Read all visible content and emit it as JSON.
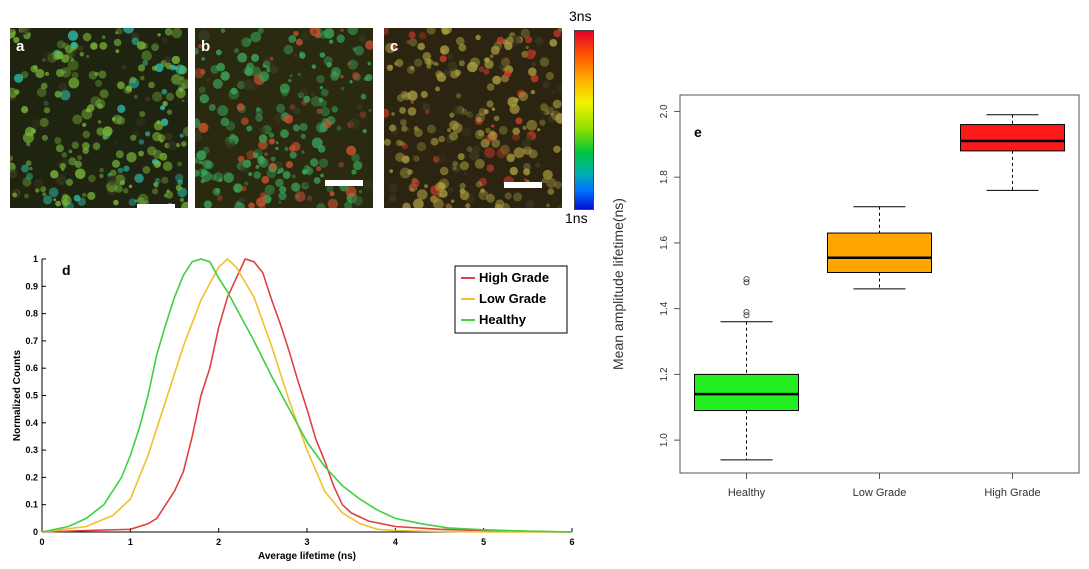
{
  "panels": {
    "a": {
      "letter": "a",
      "palette": {
        "base": "#1f2410",
        "fg": "#78b53a",
        "accent": "#2dc3b0"
      }
    },
    "b": {
      "letter": "b",
      "palette": {
        "base": "#2a2a10",
        "fg": "#3aa85a",
        "accent": "#c85030"
      }
    },
    "c": {
      "letter": "c",
      "palette": {
        "base": "#2a2410",
        "fg": "#a89a40",
        "accent": "#d03a2a"
      }
    }
  },
  "colorbar": {
    "top_label": "3ns",
    "bottom_label": "1ns"
  },
  "chart_data": [
    {
      "panel": "d",
      "type": "line",
      "xlabel": "Average lifetime (ns)",
      "ylabel": "Normalized Counts",
      "xlim": [
        0,
        6
      ],
      "ylim": [
        0,
        1
      ],
      "xticks": [
        "0",
        "1",
        "2",
        "3",
        "4",
        "5",
        "6"
      ],
      "yticks": [
        "0",
        "0.1",
        "0.2",
        "0.3",
        "0.4",
        "0.5",
        "0.6",
        "0.7",
        "0.8",
        "0.9",
        "1"
      ],
      "legend_position": "top-right",
      "grid": false,
      "series": [
        {
          "name": "High Grade",
          "color": "#e04040",
          "x": [
            0,
            0.5,
            1.0,
            1.2,
            1.3,
            1.4,
            1.5,
            1.6,
            1.7,
            1.8,
            1.9,
            2.0,
            2.1,
            2.2,
            2.3,
            2.4,
            2.5,
            2.6,
            2.7,
            2.8,
            2.9,
            3.0,
            3.1,
            3.2,
            3.3,
            3.4,
            3.5,
            3.7,
            4.0,
            4.5,
            5.0,
            6.0
          ],
          "y": [
            0,
            0.005,
            0.01,
            0.03,
            0.05,
            0.1,
            0.15,
            0.22,
            0.35,
            0.5,
            0.6,
            0.75,
            0.86,
            0.93,
            1.0,
            0.99,
            0.95,
            0.85,
            0.76,
            0.66,
            0.55,
            0.45,
            0.34,
            0.26,
            0.17,
            0.1,
            0.07,
            0.04,
            0.02,
            0.01,
            0.005,
            0
          ]
        },
        {
          "name": "Low Grade",
          "color": "#f0c030",
          "x": [
            0,
            0.5,
            0.8,
            1.0,
            1.2,
            1.4,
            1.6,
            1.8,
            2.0,
            2.1,
            2.2,
            2.4,
            2.6,
            2.8,
            3.0,
            3.2,
            3.4,
            3.6,
            3.8,
            4.0,
            4.5,
            5.0,
            6.0
          ],
          "y": [
            0,
            0.02,
            0.06,
            0.12,
            0.28,
            0.48,
            0.68,
            0.85,
            0.97,
            1.0,
            0.97,
            0.86,
            0.68,
            0.48,
            0.3,
            0.15,
            0.07,
            0.03,
            0.01,
            0.005,
            0.002,
            0,
            0
          ]
        },
        {
          "name": "Healthy",
          "color": "#40d040",
          "x": [
            0,
            0.3,
            0.5,
            0.7,
            0.9,
            1.0,
            1.1,
            1.2,
            1.3,
            1.4,
            1.5,
            1.6,
            1.7,
            1.8,
            1.9,
            2.0,
            2.1,
            2.2,
            2.4,
            2.6,
            2.8,
            3.0,
            3.2,
            3.4,
            3.6,
            3.8,
            4.0,
            4.3,
            4.6,
            5.0,
            5.5,
            6.0
          ],
          "y": [
            0,
            0.02,
            0.05,
            0.1,
            0.2,
            0.28,
            0.38,
            0.5,
            0.65,
            0.76,
            0.86,
            0.94,
            0.99,
            1.0,
            0.99,
            0.93,
            0.88,
            0.82,
            0.7,
            0.57,
            0.45,
            0.33,
            0.24,
            0.17,
            0.12,
            0.08,
            0.05,
            0.03,
            0.015,
            0.008,
            0.003,
            0
          ]
        }
      ]
    },
    {
      "panel": "e",
      "type": "box",
      "ylabel": "Mean amplitude lifetime(ns)",
      "ylim": [
        0.9,
        2.05
      ],
      "yticks": [
        "1.0",
        "1.2",
        "1.4",
        "1.6",
        "1.8",
        "2.0"
      ],
      "grid": false,
      "categories": [
        "Healthy",
        "Low Grade",
        "High Grade"
      ],
      "boxes": [
        {
          "name": "Healthy",
          "color": "#22ee22",
          "whisker_low": 0.94,
          "q1": 1.09,
          "median": 1.14,
          "q3": 1.2,
          "whisker_high": 1.36,
          "outliers": [
            1.38,
            1.39,
            1.48,
            1.49
          ]
        },
        {
          "name": "Low Grade",
          "color": "#ffa500",
          "whisker_low": 1.46,
          "q1": 1.51,
          "median": 1.555,
          "q3": 1.63,
          "whisker_high": 1.71,
          "outliers": []
        },
        {
          "name": "High Grade",
          "color": "#ff1a1a",
          "whisker_low": 1.76,
          "q1": 1.88,
          "median": 1.91,
          "q3": 1.96,
          "whisker_high": 1.99,
          "outliers": []
        }
      ]
    }
  ]
}
